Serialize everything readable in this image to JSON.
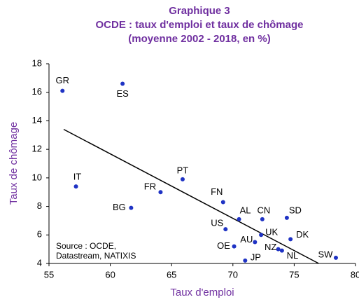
{
  "chart_data": {
    "type": "scatter",
    "title": [
      "Graphique 3",
      "OCDE : taux d'emploi et taux de chômage",
      "(moyenne 2002 - 2018, en %)"
    ],
    "x_label": "Taux d'emploi",
    "y_label": "Taux de chômage",
    "annotation": [
      "Source : OCDE,",
      "Datastream, NATIXIS"
    ],
    "labels": [
      "GR",
      "ES",
      "IT",
      "PT",
      "FR",
      "BG",
      "FN",
      "AL",
      "CN",
      "SD",
      "US",
      "UK",
      "DK",
      "AU",
      "OE",
      "NZ",
      "NL",
      "JP",
      "SW"
    ],
    "x": [
      56.1,
      61.0,
      57.2,
      65.9,
      64.1,
      61.7,
      69.2,
      70.5,
      72.4,
      74.4,
      69.4,
      72.3,
      74.7,
      71.8,
      70.1,
      73.7,
      74.0,
      71.0,
      78.4
    ],
    "y": [
      16.1,
      16.6,
      9.4,
      9.9,
      9.0,
      7.9,
      8.3,
      7.1,
      7.1,
      7.2,
      6.4,
      6.0,
      5.7,
      5.5,
      5.2,
      5.0,
      4.9,
      4.2,
      4.4
    ],
    "color": "#1f33c4",
    "trendline": {
      "x": [
        56.2,
        77.0
      ],
      "y": [
        13.4,
        4.0
      ],
      "color": "#000000"
    },
    "xlim": [
      55,
      80
    ],
    "xticks": [
      55,
      60,
      65,
      70,
      75,
      80
    ],
    "ylim": [
      4,
      18
    ],
    "yticks": [
      4,
      6,
      8,
      10,
      12,
      14,
      16,
      18
    ]
  }
}
